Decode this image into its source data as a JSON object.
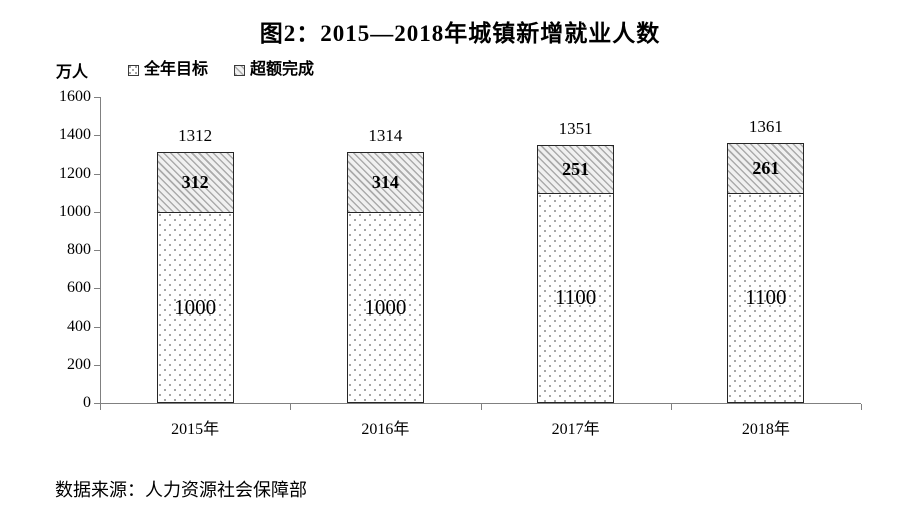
{
  "figure": {
    "title": "图2：2015—2018年城镇新增就业人数",
    "y_unit_label": "万人",
    "source": "数据来源：人力资源社会保障部"
  },
  "legend": {
    "items": [
      {
        "label": "全年目标",
        "pattern": "dotted"
      },
      {
        "label": "超额完成",
        "pattern": "hatched"
      }
    ]
  },
  "chart_data": {
    "type": "bar",
    "stacked": true,
    "title": "图2：2015—2018年城镇新增就业人数",
    "ylabel": "万人",
    "xlabel": "",
    "categories": [
      "2015年",
      "2016年",
      "2017年",
      "2018年"
    ],
    "series": [
      {
        "name": "全年目标",
        "pattern": "dotted",
        "values": [
          1000,
          1000,
          1100,
          1100
        ]
      },
      {
        "name": "超额完成",
        "pattern": "hatched",
        "values": [
          312,
          314,
          251,
          261
        ]
      }
    ],
    "totals": [
      1312,
      1314,
      1351,
      1361
    ],
    "ylim": [
      0,
      1600
    ],
    "yticks": [
      0,
      200,
      400,
      600,
      800,
      1000,
      1200,
      1400,
      1600
    ],
    "grid": false,
    "legend_position": "top-left"
  },
  "colors": {
    "text": "#000000",
    "axis": "#808080",
    "bar_border": "#262626",
    "hatch_stripe": "#ababab",
    "hatch_bg": "#f0f0f0",
    "dot": "#8f8f8f",
    "background": "#ffffff"
  }
}
